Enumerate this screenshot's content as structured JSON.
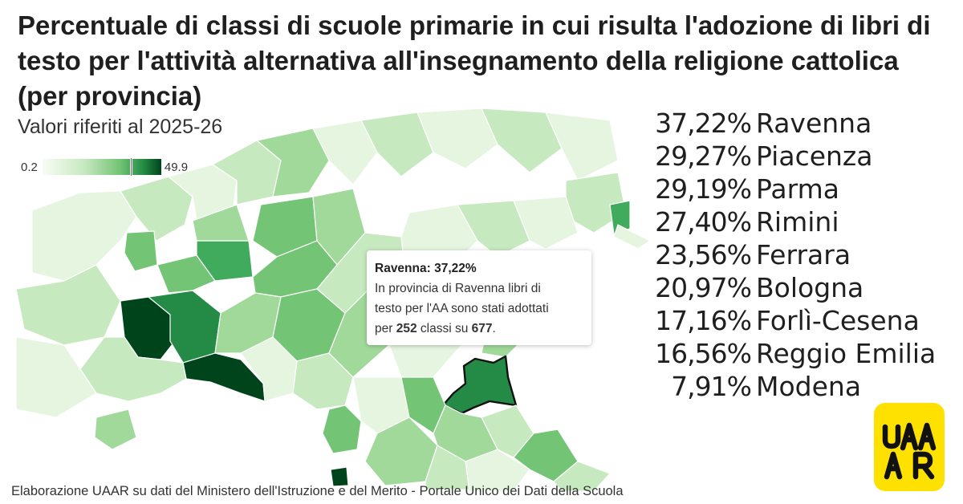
{
  "title": "Percentuale di classi di scuole primarie in cui risulta l'adozione di libri di testo per l'attività alternativa all'insegnamento della religione cattolica (per provincia)",
  "subtitle": "Valori riferiti al 2025-26",
  "legend": {
    "min": "0.2",
    "max": "49.9",
    "marker_value": 37.22
  },
  "colors": {
    "scale": [
      "#f7fcf5",
      "#c7e9c0",
      "#74c476",
      "#238b45",
      "#00441b"
    ],
    "highlight_stroke": "#111111",
    "logo_bg": "#ffe100"
  },
  "tooltip": {
    "heading": "Ravenna: 37,22%",
    "line1": "In provincia di Ravenna libri di",
    "line2": "testo per l'AA sono stati adottati",
    "line3_prefix": "per ",
    "classes_adopted": "252",
    "line3_middle": " classi su ",
    "classes_total": "677",
    "line3_suffix": "."
  },
  "ranking": [
    {
      "pct": "37,22%",
      "name": "Ravenna"
    },
    {
      "pct": "29,27%",
      "name": "Piacenza"
    },
    {
      "pct": "29,19%",
      "name": "Parma"
    },
    {
      "pct": "27,40%",
      "name": "Rimini"
    },
    {
      "pct": "23,56%",
      "name": "Ferrara"
    },
    {
      "pct": "20,97%",
      "name": "Bologna"
    },
    {
      "pct": "17,16%",
      "name": "Forlì-Cesena"
    },
    {
      "pct": "16,56%",
      "name": "Reggio Emilia"
    },
    {
      "pct": "7,91%",
      "name": "Modena"
    }
  ],
  "source": "Elaborazione UAAR su dati del Ministero dell'Istruzione e del Merito - Portale Unico dei Dati della Scuola",
  "logo": {
    "line1": "UAA",
    "line2": "AR"
  }
}
